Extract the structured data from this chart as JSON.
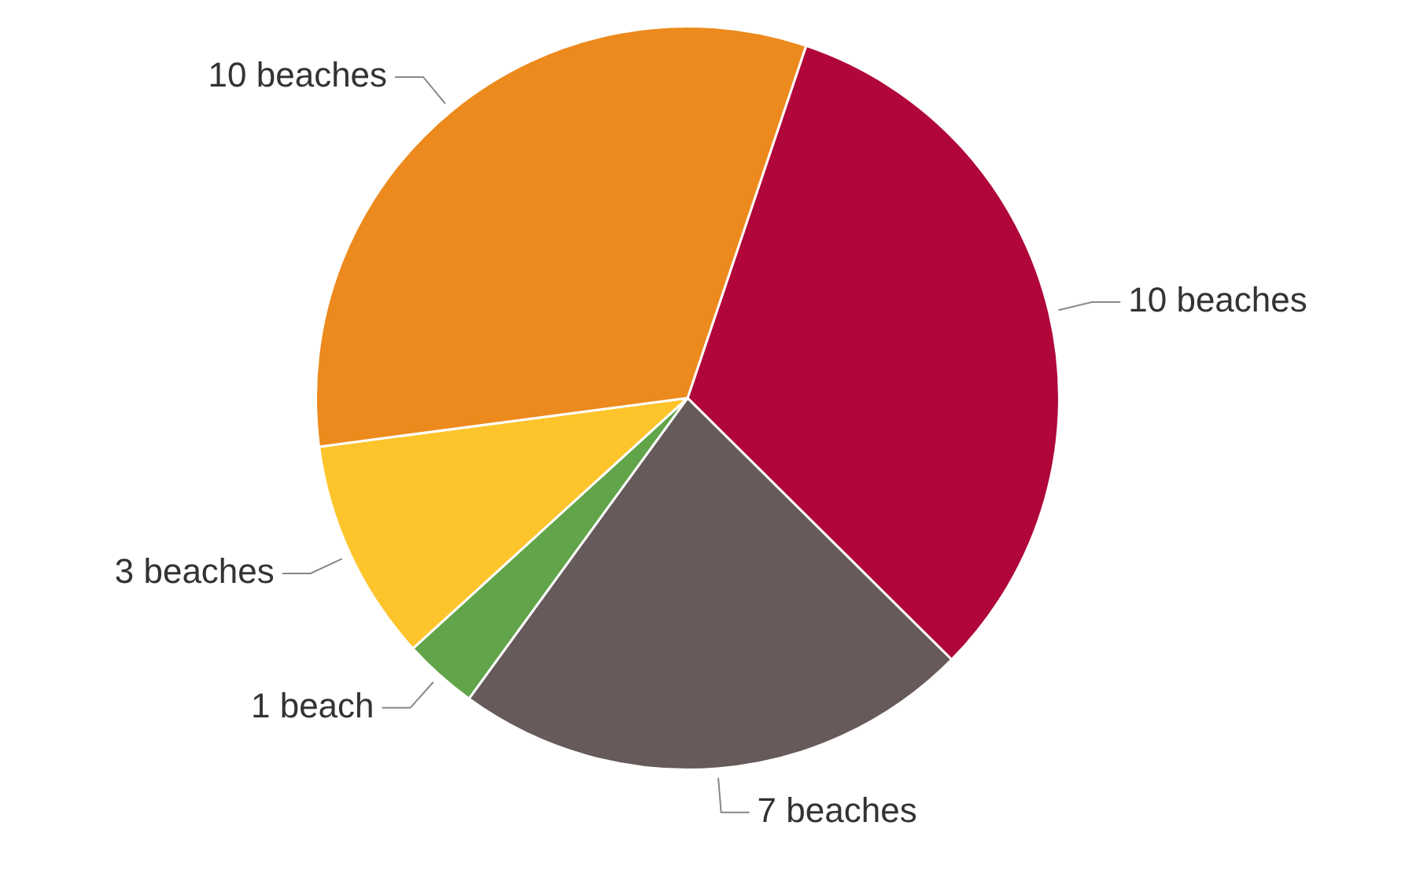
{
  "chart_data": {
    "type": "pie",
    "categories": [
      null,
      null,
      null,
      null,
      null
    ],
    "values": [
      10,
      7,
      1,
      3,
      10
    ],
    "colors": [
      "#b0063a",
      "#665b5a",
      "#62a44a",
      "#fdc42c",
      "#ed8a1d"
    ],
    "value_labels": [
      "10 beaches",
      "7 beaches",
      "1 beach",
      "3 beaches",
      "10 beaches"
    ]
  }
}
